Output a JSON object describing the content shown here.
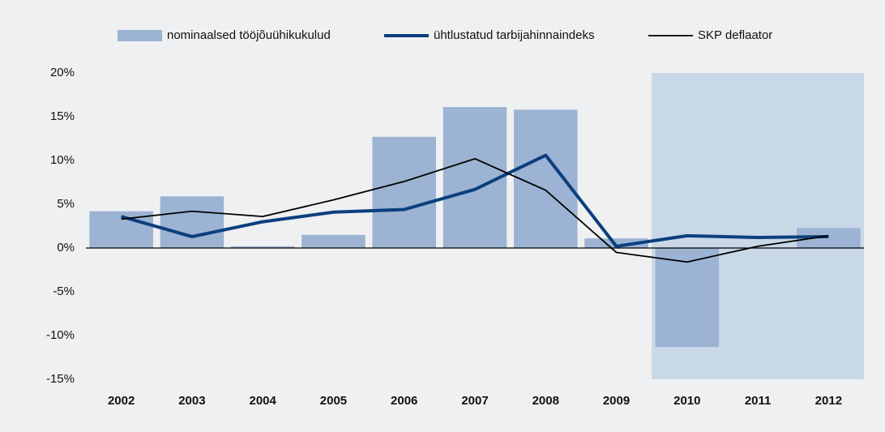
{
  "chart_data": {
    "type": "bar-line",
    "categories": [
      "2002",
      "2003",
      "2004",
      "2005",
      "2006",
      "2007",
      "2008",
      "2009",
      "2010",
      "2011",
      "2012"
    ],
    "series": [
      {
        "name": "nominaalsed tööjõuühikukulud",
        "type": "bar",
        "color": "#9cb3d3",
        "values": [
          4.2,
          5.9,
          0.2,
          1.5,
          12.7,
          16.1,
          15.8,
          1.1,
          -11.3,
          0,
          2.3
        ]
      },
      {
        "name": "ühtlustatud tarbijahinnaindeks",
        "type": "line",
        "color": "#0b3f7e",
        "width": 4,
        "values": [
          3.6,
          1.3,
          3.0,
          4.1,
          4.4,
          6.7,
          10.6,
          0.2,
          1.4,
          1.2,
          1.3
        ]
      },
      {
        "name": "SKP deflaator",
        "type": "line",
        "color": "#000000",
        "width": 1.8,
        "values": [
          3.3,
          4.2,
          3.6,
          5.5,
          7.6,
          10.2,
          6.6,
          -0.5,
          -1.6,
          0.2,
          1.4
        ]
      }
    ],
    "ylim": [
      -15,
      20
    ],
    "yticks": [
      {
        "value": -15,
        "label": "-15%"
      },
      {
        "value": -10,
        "label": "-10%"
      },
      {
        "value": -5,
        "label": "-5%"
      },
      {
        "value": 0,
        "label": "0%"
      },
      {
        "value": 5,
        "label": "5%"
      },
      {
        "value": 10,
        "label": "10%"
      },
      {
        "value": 15,
        "label": "15%"
      },
      {
        "value": 20,
        "label": "20%"
      }
    ],
    "shaded": {
      "from": "2010",
      "to": "2012",
      "color": "#c9d8e7"
    },
    "legend": "top"
  }
}
